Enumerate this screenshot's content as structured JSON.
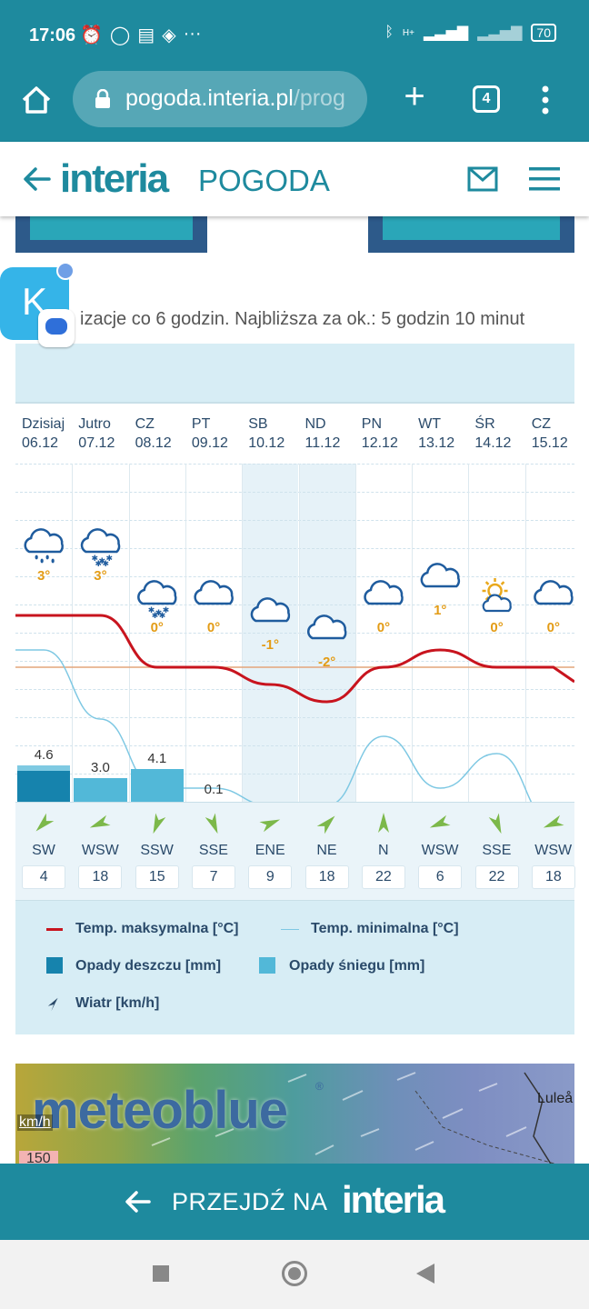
{
  "status_bar": {
    "time": "17:06",
    "battery": "70",
    "signal_label": "H+"
  },
  "browser": {
    "url_main": "pogoda.interia.pl",
    "url_rest": "/prog",
    "tab_count": "4"
  },
  "site_header": {
    "logo": "interia",
    "logo_sub": "POGODA"
  },
  "floating_bubble": {
    "letter": "K"
  },
  "forecast": {
    "update_note": "izacje co 6 godzin. Najbliższa za ok.: 5 godzin 10 minut",
    "days": [
      {
        "name": "Dzisiaj",
        "date": "06.12",
        "icon": "rain-cloud-icon",
        "temp": "3°",
        "precip": "4.6",
        "precip_type": "rain",
        "wind_dir": "SW",
        "wind_speed": "4"
      },
      {
        "name": "Jutro",
        "date": "07.12",
        "icon": "snow-cloud-icon",
        "temp": "3°",
        "precip": "3.0",
        "precip_type": "snow",
        "wind_dir": "WSW",
        "wind_speed": "18"
      },
      {
        "name": "CZ",
        "date": "08.12",
        "icon": "snow-cloud-icon",
        "temp": "0°",
        "precip": "4.1",
        "precip_type": "snow",
        "wind_dir": "SSW",
        "wind_speed": "15"
      },
      {
        "name": "PT",
        "date": "09.12",
        "icon": "cloud-icon",
        "temp": "0°",
        "precip": "0.1",
        "precip_type": "rain",
        "wind_dir": "SSE",
        "wind_speed": "7"
      },
      {
        "name": "SB",
        "date": "10.12",
        "icon": "cloud-icon",
        "temp": "-1°",
        "precip": "",
        "precip_type": "none",
        "wind_dir": "ENE",
        "wind_speed": "9"
      },
      {
        "name": "ND",
        "date": "11.12",
        "icon": "cloud-icon",
        "temp": "-2°",
        "precip": "",
        "precip_type": "none",
        "wind_dir": "NE",
        "wind_speed": "18"
      },
      {
        "name": "PN",
        "date": "12.12",
        "icon": "cloud-icon",
        "temp": "0°",
        "precip": "",
        "precip_type": "none",
        "wind_dir": "N",
        "wind_speed": "22"
      },
      {
        "name": "WT",
        "date": "13.12",
        "icon": "cloud-icon",
        "temp": "1°",
        "precip": "",
        "precip_type": "none",
        "wind_dir": "WSW",
        "wind_speed": "6"
      },
      {
        "name": "ŚR",
        "date": "14.12",
        "icon": "sun-cloud-icon",
        "temp": "0°",
        "precip": "",
        "precip_type": "none",
        "wind_dir": "SSE",
        "wind_speed": "22"
      },
      {
        "name": "CZ",
        "date": "15.12",
        "icon": "cloud-icon",
        "temp": "0°",
        "precip": "",
        "precip_type": "none",
        "wind_dir": "WSW",
        "wind_speed": "18"
      }
    ]
  },
  "chart_data": {
    "type": "line",
    "categories": [
      "06.12",
      "07.12",
      "08.12",
      "09.12",
      "10.12",
      "11.12",
      "12.12",
      "13.12",
      "14.12",
      "15.12"
    ],
    "series": [
      {
        "name": "Temp. maksymalna [°C]",
        "values": [
          3,
          3,
          0,
          0,
          -1,
          -2,
          0,
          1,
          0,
          0
        ],
        "color": "#c8141e"
      },
      {
        "name": "Temp. minimalna [°C]",
        "values": [
          1,
          -3,
          -7,
          -7,
          -8,
          -8,
          -4,
          -7,
          -5,
          -9
        ],
        "color": "#7ec8e3"
      }
    ],
    "precipitation": {
      "rain_mm": [
        4.6,
        0,
        0,
        0.1,
        0,
        0,
        0,
        0,
        0,
        0
      ],
      "snow_mm": [
        0,
        3.0,
        4.1,
        0,
        0,
        0,
        0,
        0,
        0,
        0
      ]
    },
    "zero_line": 0
  },
  "legend": {
    "max_temp": "Temp. maksymalna [°C]",
    "min_temp": "Temp. minimalna [°C]",
    "rain": "Opady deszczu [mm]",
    "snow": "Opady śniegu [mm]",
    "wind": "Wiatr [km/h]"
  },
  "meteoblue": {
    "logo": "meteoblue",
    "unit": "km/h",
    "scale_value": "150",
    "city": "Luleå"
  },
  "goto_bar": {
    "text": "PRZEJDŹ NA",
    "logo": "interia"
  },
  "colors": {
    "brand": "#1e8a9e",
    "temp_max": "#c8141e",
    "temp_min": "#7ec8e3",
    "rain": "#1683ad",
    "snow": "#52b8d8",
    "temp_label": "#e39c16"
  }
}
